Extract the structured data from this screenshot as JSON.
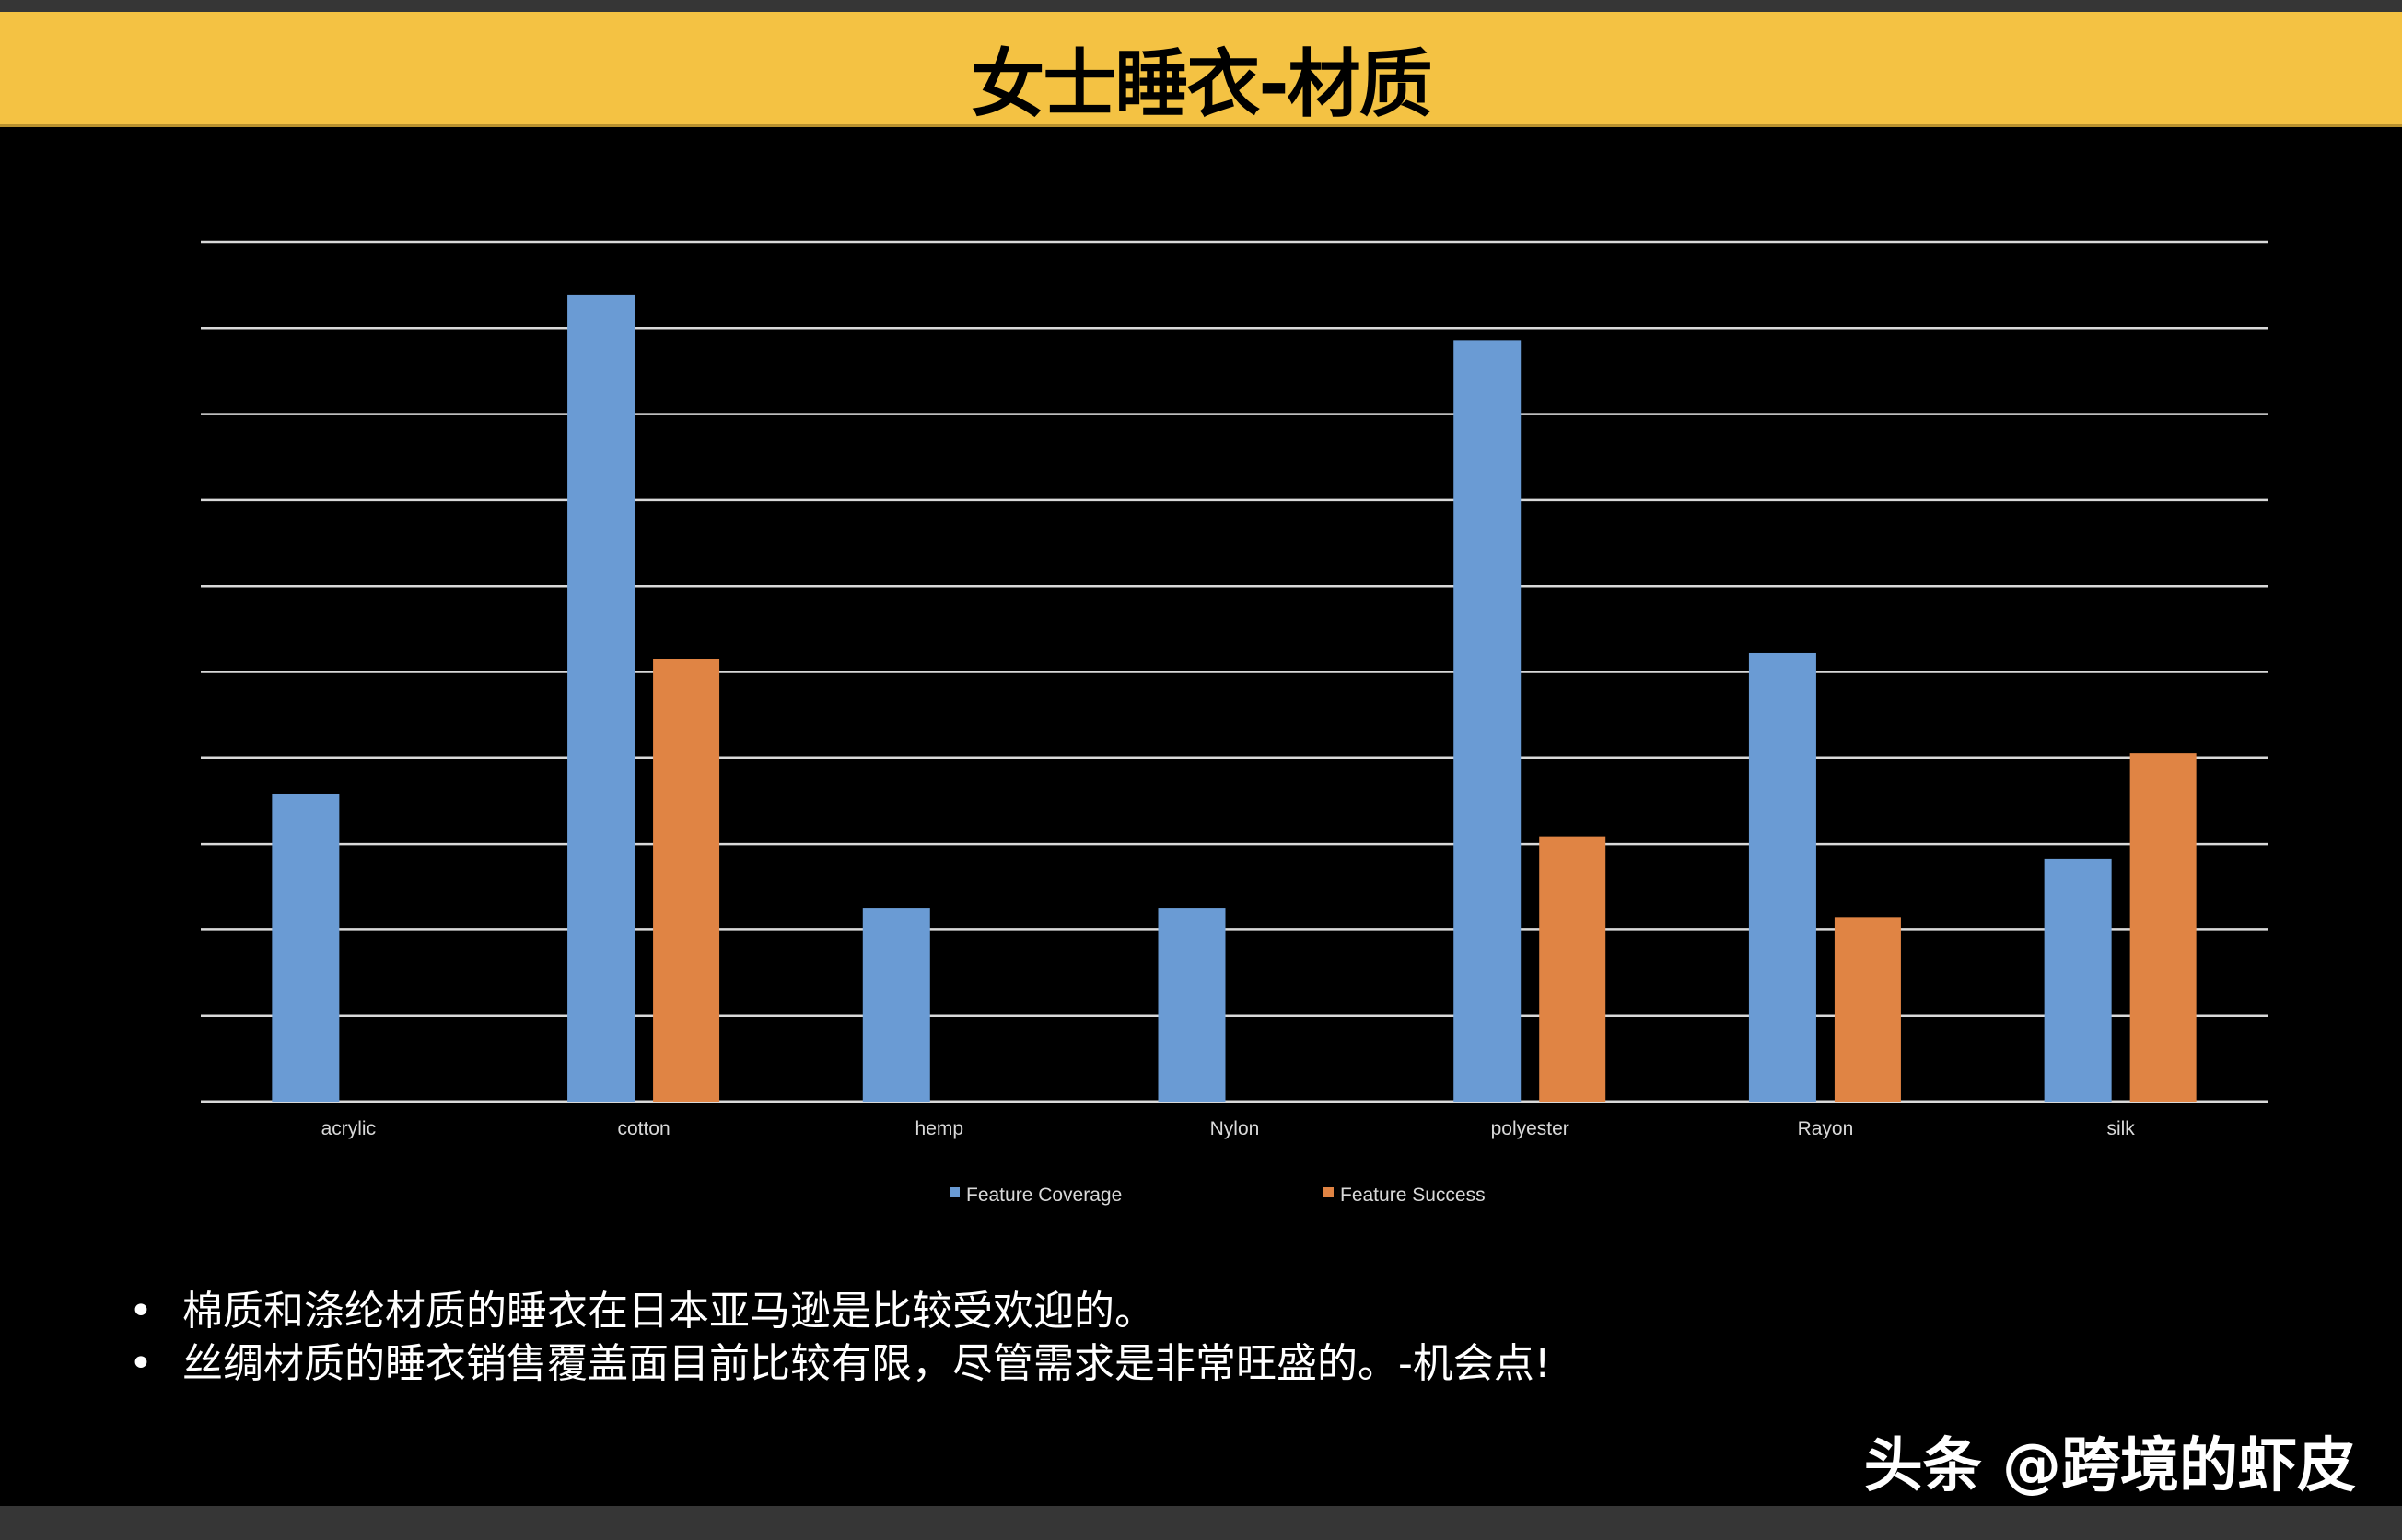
{
  "title": "女士睡衣-材质",
  "colors": {
    "coverage": "#6a9bd4",
    "success": "#e08444",
    "title_bar": "#f4c243",
    "background": "#000000",
    "grid": "#d9d9d9"
  },
  "chart_data": {
    "type": "bar",
    "categories": [
      "acrylic",
      "cotton",
      "hemp",
      "Nylon",
      "polyester",
      "Rayon",
      "silk"
    ],
    "series": [
      {
        "name": "Feature Coverage",
        "values": [
          3.58,
          9.39,
          2.25,
          2.25,
          8.86,
          5.22,
          2.82
        ]
      },
      {
        "name": "Feature Success",
        "values": [
          0,
          5.15,
          0,
          0,
          3.08,
          2.14,
          4.05
        ]
      }
    ],
    "ylim": [
      0,
      10
    ],
    "y_tick_labels_shown": false,
    "grid": true,
    "legend": "bottom",
    "xlabel": "",
    "ylabel": ""
  },
  "bullets": [
    "棉质和涤纶材质的睡衣在日本亚马逊是比较受欢迎的。",
    "丝绸材质的睡衣销售覆盖面目前比较有限，尽管需求是非常旺盛的。-机会点!"
  ],
  "bullet_symbol": "•",
  "watermark": "头条 @跨境的虾皮"
}
